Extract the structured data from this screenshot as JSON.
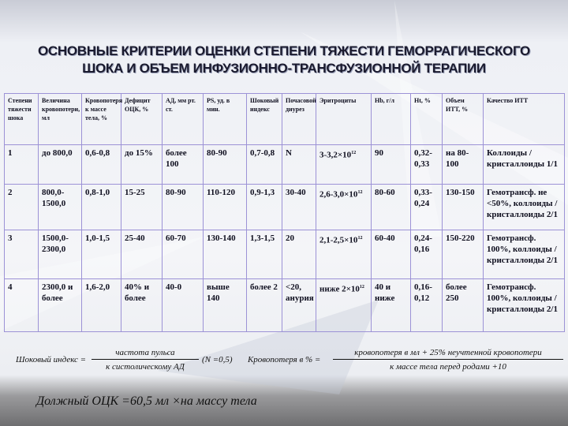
{
  "title_line1": "ОСНОВНЫЕ КРИТЕРИИ ОЦЕНКИ СТЕПЕНИ ТЯЖЕСТИ ГЕМОРРАГИЧЕСКОГО",
  "title_line2": "ШОКА И ОБЪЕМ ИНФУЗИОННО-ТРАНСФУЗИОННОЙ ТЕРАПИИ",
  "table": {
    "headers": [
      "Степени тяжести шока",
      "Величина кровопотери, мл",
      "Кровопотеря к массе тела, %",
      "Дефицит ОЦК, %",
      "АД, мм рт. ст.",
      "PS, уд. в мин.",
      "Шоковый индекс",
      "Почасовой диурез",
      "Эритроциты",
      "Hb, г/л",
      "Ht, %",
      "Объем ИТТ, %",
      "Качество ИТТ"
    ],
    "rows": [
      [
        "1",
        "до 800,0",
        "0,6-0,8",
        "до 15%",
        "более 100",
        "80-90",
        "0,7-0,8",
        "N",
        "3-3,2×10",
        "90",
        "0,32-0,33",
        "на 80-100",
        "Коллоиды / кристаллоиды 1/1"
      ],
      [
        "2",
        "800,0-1500,0",
        "0,8-1,0",
        "15-25",
        "80-90",
        "110-120",
        "0,9-1,3",
        "30-40",
        "2,6-3,0×10",
        "80-60",
        "0,33-0,24",
        "130-150",
        "Гемотрансф. не <50%, коллоиды / кристаллоиды 2/1"
      ],
      [
        "3",
        "1500,0-2300,0",
        "1,0-1,5",
        "25-40",
        "60-70",
        "130-140",
        "1,3-1,5",
        "20",
        "2,1-2,5×10",
        "60-40",
        "0,24-0,16",
        "150-220",
        "Гемотрансф. 100%, коллоиды / кристаллоиды 2/1"
      ],
      [
        "4",
        "2300,0 и более",
        "1,6-2,0",
        "40% и более",
        "40-0",
        "выше 140",
        "более 2",
        "<20, анурия",
        "ниже 2×10",
        "40 и ниже",
        "0,16-0,12",
        "более 250",
        "Гемотрансф. 100%, коллоиды / кристаллоиды 2/1"
      ]
    ],
    "exponent": "12"
  },
  "formulas": {
    "shock_index_label": "Шоковый индекс =",
    "shock_index_num": "частота пульса",
    "shock_index_den": "к систолическому АД",
    "shock_index_norm": "(N =0,5)",
    "blood_loss_label": "Кровопотеря в % =",
    "blood_loss_num": "кровопотеря в мл + 25% неучтенной кровопотери",
    "blood_loss_den": "к массе тела перед родами +10",
    "bcv": "Должный ОЦК =60,5 мл ×на массу тела"
  }
}
